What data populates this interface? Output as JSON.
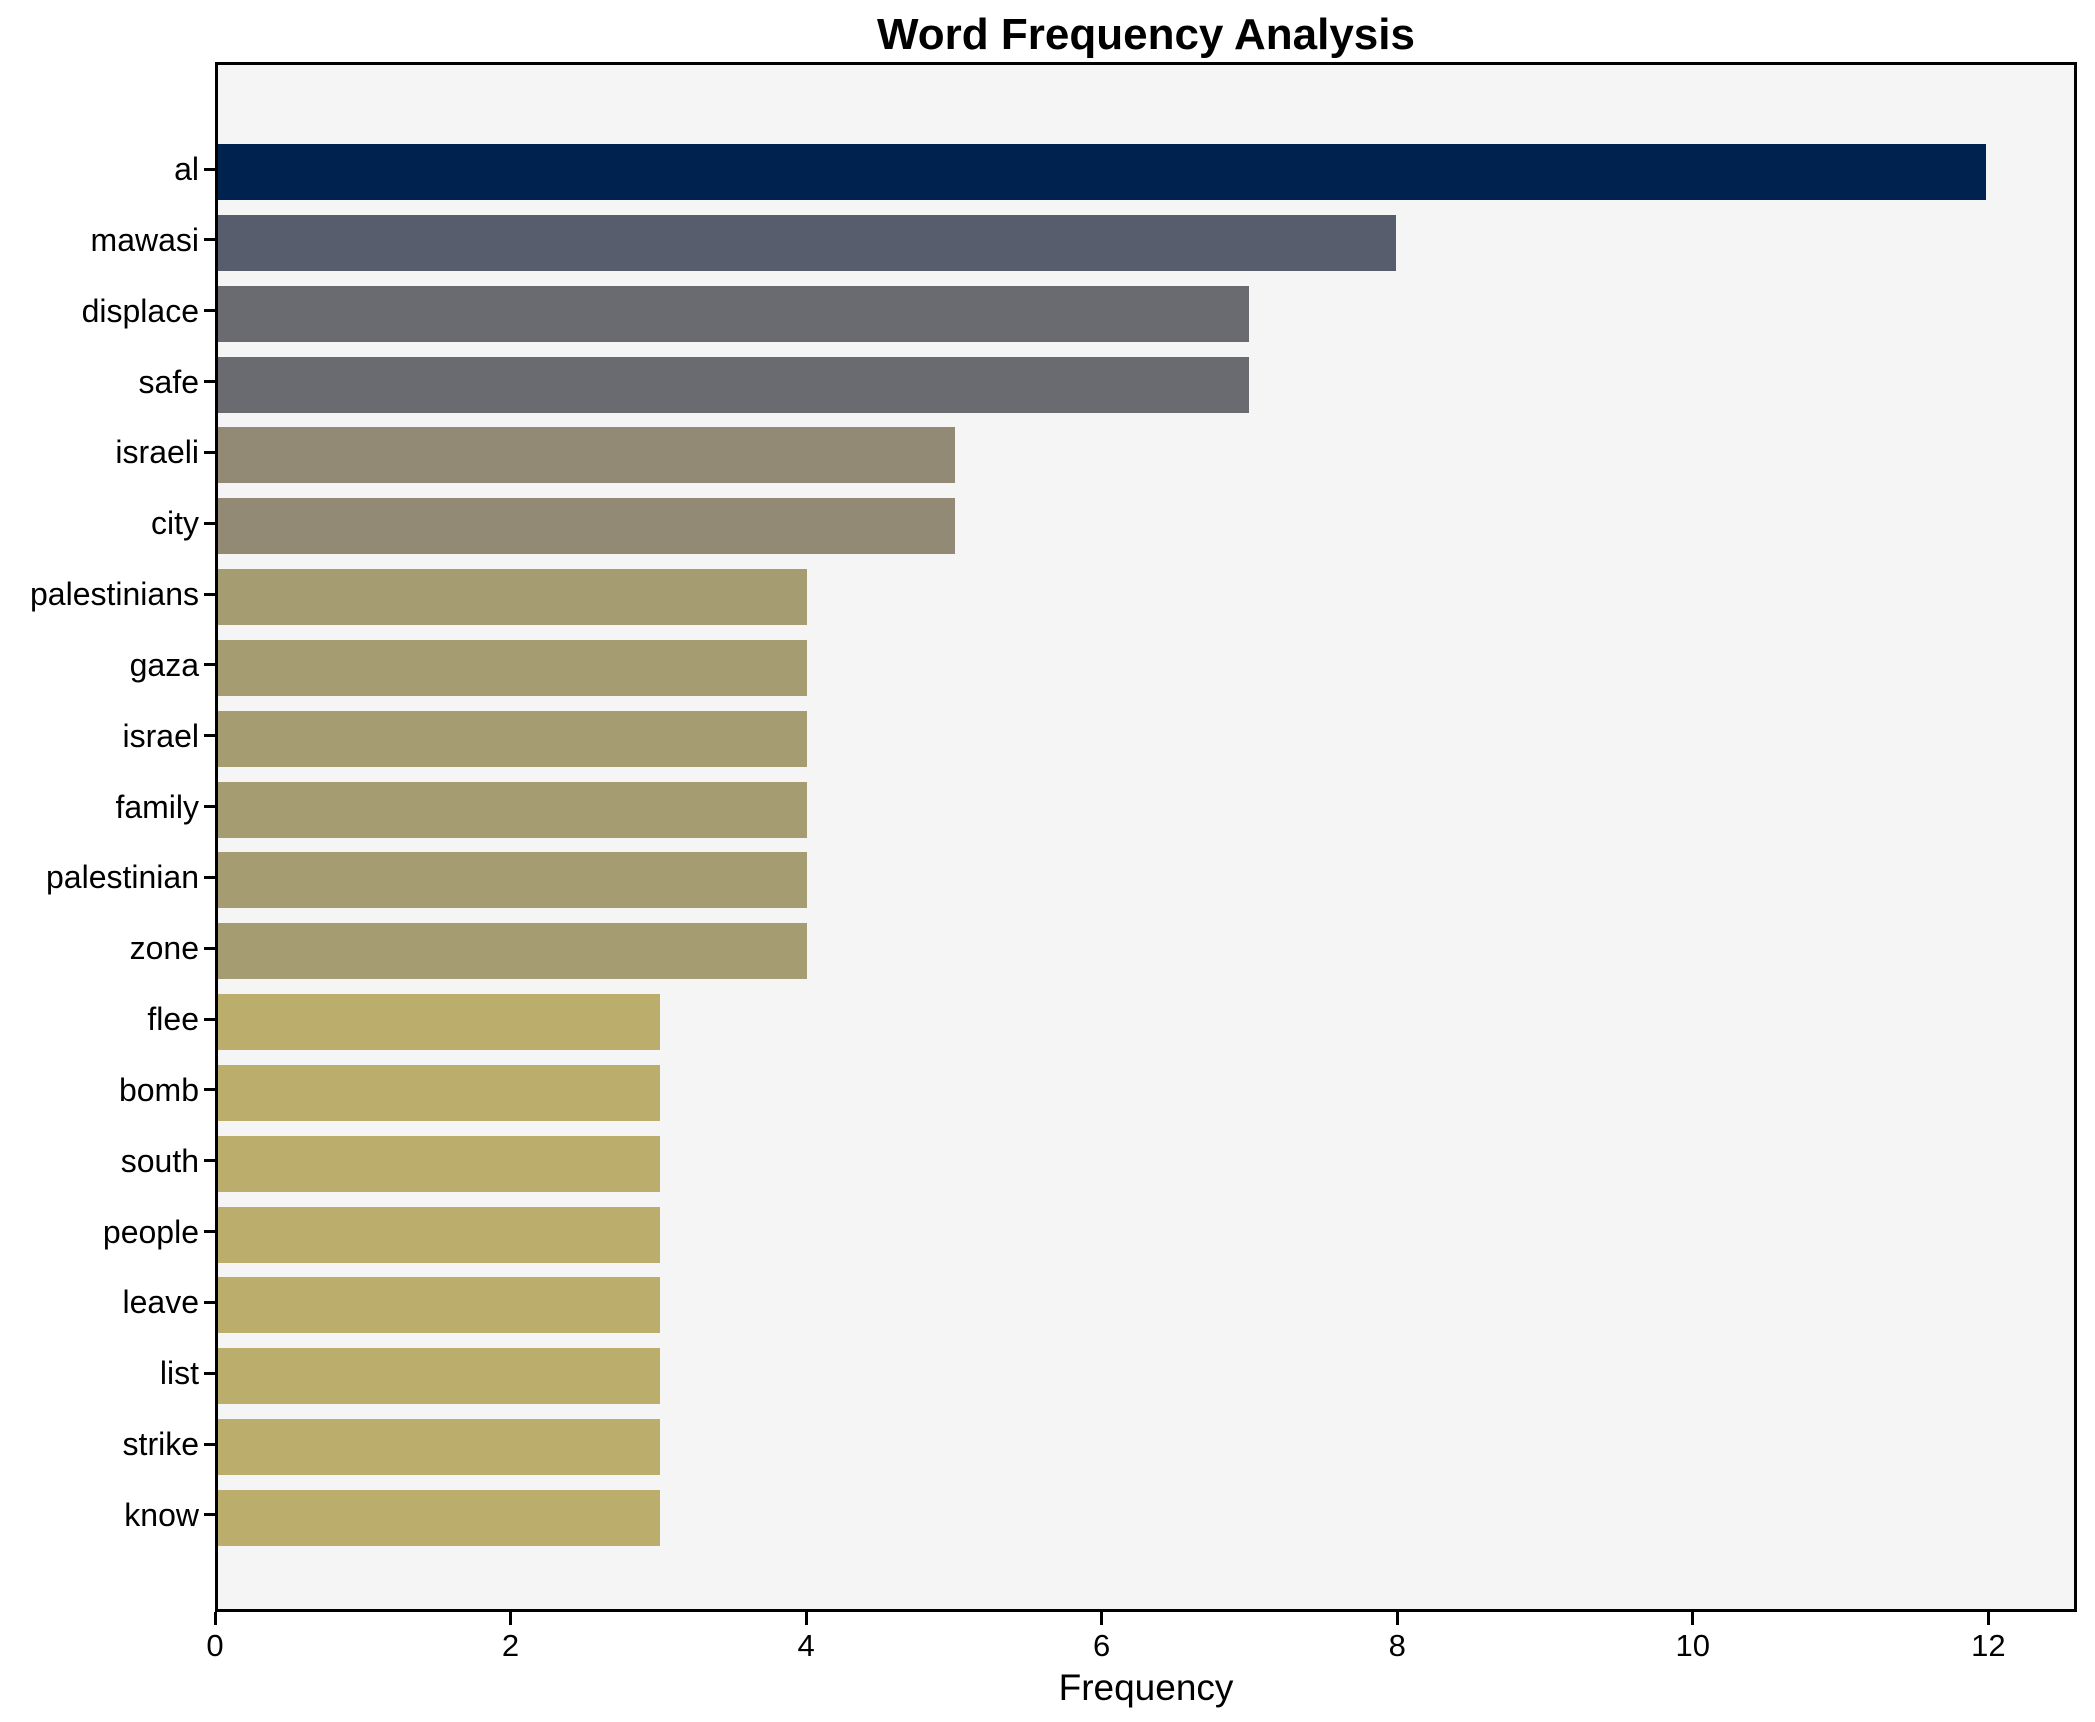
{
  "title": "Word Frequency Analysis",
  "axis": {
    "xlabel": "Frequency"
  },
  "chart_data": {
    "type": "bar",
    "orientation": "horizontal",
    "title": "Word Frequency Analysis",
    "xlabel": "Frequency",
    "ylabel": "",
    "categories": [
      "al",
      "mawasi",
      "displace",
      "safe",
      "israeli",
      "city",
      "palestinians",
      "gaza",
      "israel",
      "family",
      "palestinian",
      "zone",
      "flee",
      "bomb",
      "south",
      "people",
      "leave",
      "list",
      "strike",
      "know"
    ],
    "values": [
      12,
      8,
      7,
      7,
      5,
      5,
      4,
      4,
      4,
      4,
      4,
      4,
      3,
      3,
      3,
      3,
      3,
      3,
      3,
      3
    ],
    "bar_colors": [
      "#00224e",
      "#575d6d",
      "#6a6b70",
      "#6a6b70",
      "#928a75",
      "#928a75",
      "#a69c72",
      "#a69c72",
      "#a69c72",
      "#a69c72",
      "#a69c72",
      "#a69c72",
      "#bbad6b",
      "#bbad6b",
      "#bbad6b",
      "#bbad6b",
      "#bbad6b",
      "#bbad6b",
      "#bbad6b",
      "#bbad6b"
    ],
    "xlim": [
      0,
      12.6
    ],
    "xticks": [
      0,
      2,
      4,
      6,
      8,
      10,
      12
    ],
    "xtick_labels": [
      "0",
      "2",
      "4",
      "6",
      "8",
      "10",
      "12"
    ],
    "grid": false,
    "legend": null,
    "colors": {
      "plot_background": "#f5f5f6",
      "figure_background": "#ffffff",
      "spine": "#000000",
      "text": "#000000"
    }
  }
}
